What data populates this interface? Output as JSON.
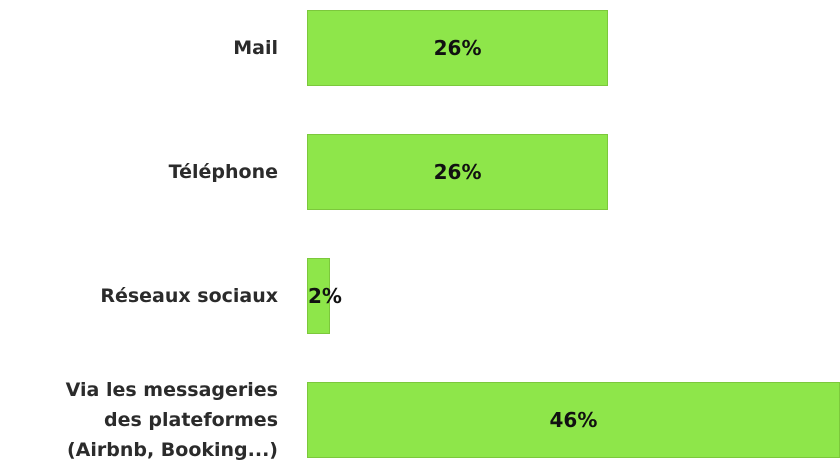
{
  "chart_data": {
    "type": "bar",
    "orientation": "horizontal",
    "categories": [
      "Mail",
      "Téléphone",
      "Réseaux sociaux",
      "Via les messageries des plateformes (Airbnb, Booking...)"
    ],
    "values": [
      26,
      26,
      2,
      46
    ],
    "value_labels": [
      "26%",
      "26%",
      "2%",
      "46%"
    ],
    "color": "#8ee64a"
  }
}
